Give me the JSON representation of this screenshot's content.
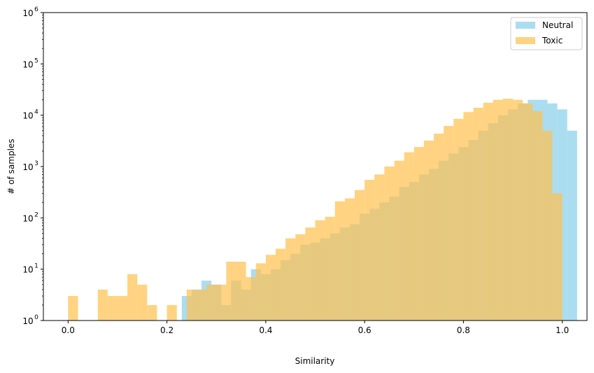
{
  "chart_data": {
    "type": "bar",
    "subtype": "overlapping-histogram",
    "title": "",
    "xlabel": "Similarity",
    "ylabel": "# of samples",
    "xlim": [
      -0.05,
      1.05
    ],
    "ylim": [
      1,
      1000000
    ],
    "yscale": "log",
    "grid": false,
    "legend_position": "top-right",
    "x_ticks": [
      {
        "value": 0.0,
        "label": "0.0"
      },
      {
        "value": 0.2,
        "label": "0.2"
      },
      {
        "value": 0.4,
        "label": "0.4"
      },
      {
        "value": 0.6,
        "label": "0.6"
      },
      {
        "value": 0.8,
        "label": "0.8"
      },
      {
        "value": 1.0,
        "label": "1.0"
      }
    ],
    "y_ticks": [
      {
        "value": 1,
        "base": "10",
        "exp": "0"
      },
      {
        "value": 10,
        "base": "10",
        "exp": "1"
      },
      {
        "value": 100,
        "base": "10",
        "exp": "2"
      },
      {
        "value": 1000,
        "base": "10",
        "exp": "3"
      },
      {
        "value": 10000,
        "base": "10",
        "exp": "4"
      },
      {
        "value": 100000,
        "base": "10",
        "exp": "5"
      },
      {
        "value": 1000000,
        "base": "10",
        "exp": "6"
      }
    ],
    "series": [
      {
        "name": "Neutral",
        "color": "#87ceeb",
        "opacity": 0.7,
        "bins": [
          [
            0.23,
            0.25,
            3
          ],
          [
            0.25,
            0.27,
            4
          ],
          [
            0.27,
            0.29,
            6
          ],
          [
            0.29,
            0.31,
            5
          ],
          [
            0.31,
            0.33,
            2
          ],
          [
            0.33,
            0.35,
            6
          ],
          [
            0.35,
            0.37,
            4
          ],
          [
            0.37,
            0.39,
            10
          ],
          [
            0.39,
            0.41,
            8
          ],
          [
            0.41,
            0.43,
            10
          ],
          [
            0.43,
            0.45,
            15
          ],
          [
            0.45,
            0.47,
            20
          ],
          [
            0.47,
            0.49,
            30
          ],
          [
            0.49,
            0.51,
            33
          ],
          [
            0.51,
            0.53,
            40
          ],
          [
            0.53,
            0.55,
            50
          ],
          [
            0.55,
            0.57,
            65
          ],
          [
            0.57,
            0.59,
            75
          ],
          [
            0.59,
            0.61,
            120
          ],
          [
            0.61,
            0.63,
            150
          ],
          [
            0.63,
            0.65,
            200
          ],
          [
            0.65,
            0.67,
            260
          ],
          [
            0.67,
            0.69,
            400
          ],
          [
            0.69,
            0.71,
            500
          ],
          [
            0.71,
            0.73,
            700
          ],
          [
            0.73,
            0.75,
            900
          ],
          [
            0.75,
            0.77,
            1300
          ],
          [
            0.77,
            0.79,
            1800
          ],
          [
            0.79,
            0.81,
            2400
          ],
          [
            0.81,
            0.83,
            3300
          ],
          [
            0.83,
            0.85,
            5000
          ],
          [
            0.85,
            0.87,
            7000
          ],
          [
            0.87,
            0.89,
            10000
          ],
          [
            0.89,
            0.91,
            13000
          ],
          [
            0.91,
            0.93,
            17000
          ],
          [
            0.93,
            0.95,
            20000
          ],
          [
            0.95,
            0.97,
            20000
          ],
          [
            0.97,
            0.99,
            17000
          ],
          [
            0.99,
            1.01,
            13000
          ],
          [
            1.01,
            1.03,
            5000
          ]
        ],
        "values_display": [
          3,
          4,
          6,
          5,
          2,
          6,
          4,
          10,
          8,
          10,
          15,
          20,
          30,
          33,
          40,
          50,
          65,
          75,
          120,
          150,
          200,
          260,
          400,
          500,
          700,
          900,
          1300,
          1800,
          2400,
          3300,
          5000,
          7000,
          10000,
          13000,
          17000,
          20000,
          20000,
          17000,
          13000,
          5000
        ]
      },
      {
        "name": "Toxic",
        "color": "#ffc04d",
        "opacity": 0.7,
        "bins": [
          [
            0.0,
            0.02,
            3
          ],
          [
            0.06,
            0.08,
            4
          ],
          [
            0.08,
            0.1,
            3
          ],
          [
            0.1,
            0.12,
            3
          ],
          [
            0.12,
            0.14,
            8
          ],
          [
            0.14,
            0.16,
            5
          ],
          [
            0.16,
            0.18,
            2
          ],
          [
            0.2,
            0.22,
            2
          ],
          [
            0.24,
            0.26,
            4
          ],
          [
            0.26,
            0.28,
            4
          ],
          [
            0.28,
            0.3,
            5
          ],
          [
            0.3,
            0.32,
            5
          ],
          [
            0.32,
            0.34,
            14
          ],
          [
            0.34,
            0.36,
            14
          ],
          [
            0.36,
            0.38,
            7
          ],
          [
            0.38,
            0.4,
            13
          ],
          [
            0.4,
            0.42,
            19
          ],
          [
            0.42,
            0.44,
            25
          ],
          [
            0.44,
            0.46,
            40
          ],
          [
            0.46,
            0.48,
            48
          ],
          [
            0.48,
            0.5,
            65
          ],
          [
            0.5,
            0.52,
            90
          ],
          [
            0.52,
            0.54,
            105
          ],
          [
            0.54,
            0.56,
            210
          ],
          [
            0.56,
            0.58,
            240
          ],
          [
            0.58,
            0.6,
            350
          ],
          [
            0.6,
            0.62,
            550
          ],
          [
            0.62,
            0.64,
            700
          ],
          [
            0.64,
            0.66,
            1000
          ],
          [
            0.66,
            0.68,
            1300
          ],
          [
            0.68,
            0.7,
            1900
          ],
          [
            0.7,
            0.72,
            2400
          ],
          [
            0.72,
            0.74,
            3200
          ],
          [
            0.74,
            0.76,
            4400
          ],
          [
            0.76,
            0.78,
            6200
          ],
          [
            0.78,
            0.8,
            8500
          ],
          [
            0.8,
            0.82,
            11500
          ],
          [
            0.82,
            0.84,
            14000
          ],
          [
            0.84,
            0.86,
            17500
          ],
          [
            0.86,
            0.88,
            20000
          ],
          [
            0.88,
            0.9,
            21000
          ],
          [
            0.9,
            0.92,
            20000
          ],
          [
            0.92,
            0.94,
            17000
          ],
          [
            0.94,
            0.96,
            12000
          ],
          [
            0.96,
            0.98,
            5000
          ],
          [
            0.98,
            1.0,
            300
          ]
        ],
        "values_display": [
          3,
          4,
          3,
          3,
          8,
          5,
          2,
          2,
          4,
          4,
          5,
          5,
          14,
          14,
          7,
          13,
          19,
          25,
          40,
          48,
          65,
          90,
          105,
          210,
          240,
          350,
          550,
          700,
          1000,
          1300,
          1900,
          2400,
          3200,
          4400,
          6200,
          8500,
          11500,
          14000,
          17500,
          20000,
          21000,
          20000,
          17000,
          12000,
          5000,
          300
        ]
      }
    ]
  }
}
